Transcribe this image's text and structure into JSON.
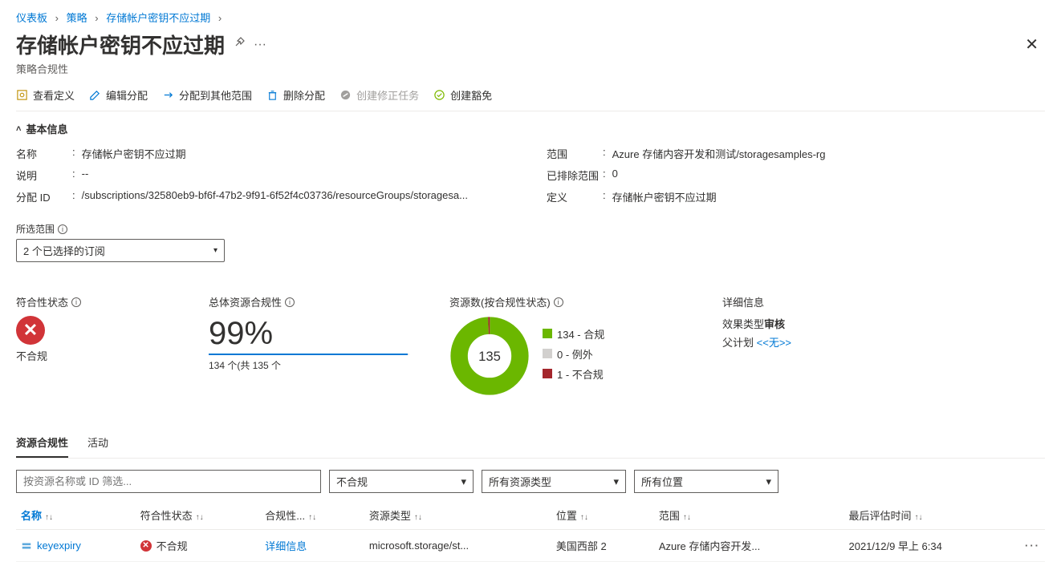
{
  "breadcrumb": {
    "items": [
      "仪表板",
      "策略",
      "存储帐户密钥不应过期"
    ]
  },
  "page": {
    "title": "存储帐户密钥不应过期",
    "subtitle": "策略合规性"
  },
  "toolbar": {
    "view_def": "查看定义",
    "edit_assign": "编辑分配",
    "assign_other": "分配到其他范围",
    "delete_assign": "删除分配",
    "create_remediation": "创建修正任务",
    "create_exemption": "创建豁免"
  },
  "section": {
    "basic_title": "基本信息"
  },
  "basic": {
    "name_label": "名称",
    "name_val": "存储帐户密钥不应过期",
    "desc_label": "说明",
    "desc_val": "--",
    "assign_id_label": "分配 ID",
    "assign_id_val": "/subscriptions/32580eb9-bf6f-47b2-9f91-6f52f4c03736/resourceGroups/storagesa...",
    "scope_label": "范围",
    "scope_val": "Azure 存储内容开发和测试/storagesamples-rg",
    "excluded_label": "已排除范围",
    "excluded_val": "0",
    "def_label": "定义",
    "def_val": "存储帐户密钥不应过期"
  },
  "scope_filter": {
    "label": "所选范围",
    "value": "2 个已选择的订阅"
  },
  "metrics": {
    "compliance_state_label": "符合性状态",
    "compliance_state_value": "不合规",
    "overall_label": "总体资源合规性",
    "overall_pct": "99%",
    "overall_progress_pct": 99,
    "overall_text": "134 个(共 135 个",
    "resources_label": "资源数(按合规性状态)",
    "donut_total": "135",
    "legend": [
      {
        "color": "#6bb700",
        "label": "134 - 合规"
      },
      {
        "color": "#d2d0ce",
        "label": "0 - 例外"
      },
      {
        "color": "#a4262c",
        "label": "1 - 不合规"
      }
    ],
    "detail_title": "详细信息",
    "effect_type_label": "效果类型",
    "effect_type_value": "审核",
    "parent_plan_label": "父计划",
    "parent_plan_value": "<<无>>"
  },
  "tabs": {
    "compliance": "资源合规性",
    "activity": "活动"
  },
  "filters": {
    "search_placeholder": "按资源名称或 ID 筛选...",
    "compliance": "不合规",
    "resource_type": "所有资源类型",
    "location": "所有位置"
  },
  "table": {
    "cols": [
      "名称",
      "符合性状态",
      "合规性...",
      "资源类型",
      "位置",
      "范围",
      "最后评估时间"
    ],
    "rows": [
      {
        "name": "keyexpiry",
        "status": "不合规",
        "detail": "详细信息",
        "type": "microsoft.storage/st...",
        "location": "美国西部 2",
        "scope": "Azure 存储内容开发...",
        "last_eval": "2021/12/9 早上 6:34"
      }
    ]
  }
}
